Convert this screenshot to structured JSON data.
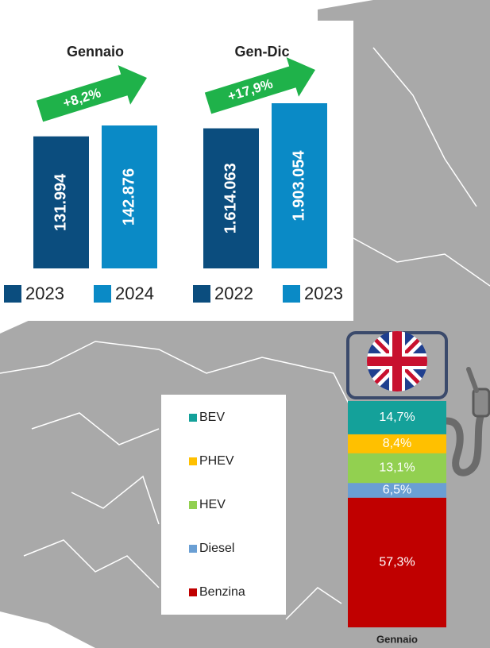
{
  "chart_data": [
    {
      "type": "bar",
      "title": "Gennaio",
      "annotation": "+8,2%",
      "series": [
        {
          "name": "2023",
          "color": "#0b4d7e",
          "values": [
            131994
          ],
          "value_labels": [
            "131.994"
          ]
        },
        {
          "name": "2024",
          "color": "#0a8ac6",
          "values": [
            142876
          ],
          "value_labels": [
            "142.876"
          ]
        }
      ]
    },
    {
      "type": "bar",
      "title": "Gen-Dic",
      "annotation": "+17,9%",
      "series": [
        {
          "name": "2022",
          "color": "#0b4d7e",
          "values": [
            1614063
          ],
          "value_labels": [
            "1.614.063"
          ]
        },
        {
          "name": "2023",
          "color": "#0a8ac6",
          "values": [
            1903054
          ],
          "value_labels": [
            "1.903.054"
          ]
        }
      ]
    },
    {
      "type": "stacked_bar",
      "categories": [
        "Gennaio"
      ],
      "series": [
        {
          "name": "BEV",
          "color": "#14a19a",
          "values": [
            14.7
          ],
          "value_labels": [
            "14,7%"
          ]
        },
        {
          "name": "PHEV",
          "color": "#ffc000",
          "values": [
            8.4
          ],
          "value_labels": [
            "8,4%"
          ]
        },
        {
          "name": "HEV",
          "color": "#92d050",
          "values": [
            13.1
          ],
          "value_labels": [
            "13,1%"
          ]
        },
        {
          "name": "Diesel",
          "color": "#6a9fd4",
          "values": [
            6.5
          ],
          "value_labels": [
            "6,5%"
          ]
        },
        {
          "name": "Benzina",
          "color": "#c00000",
          "values": [
            57.3
          ],
          "value_labels": [
            "57,3%"
          ]
        }
      ]
    }
  ]
}
